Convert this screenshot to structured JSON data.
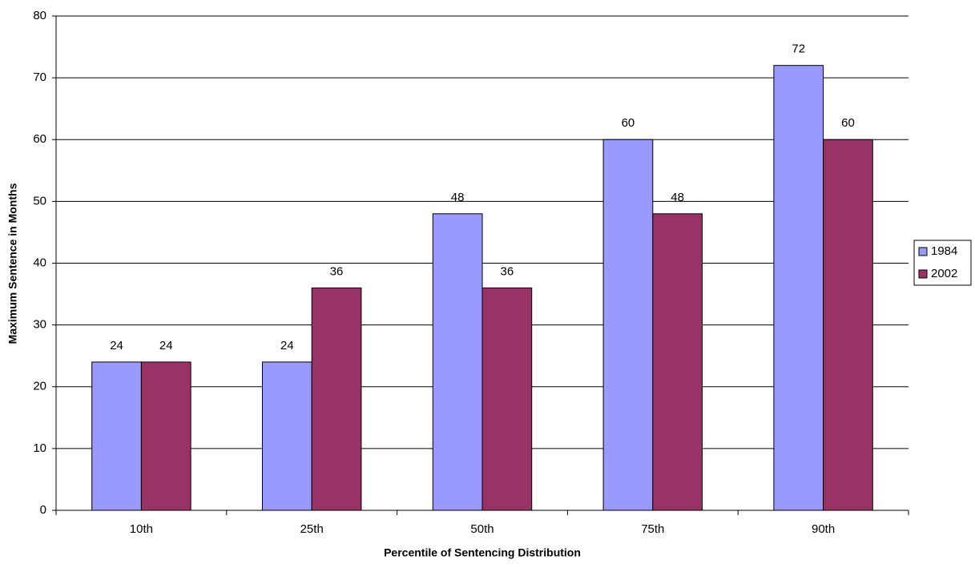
{
  "chart_data": {
    "type": "bar",
    "x_label": "Percentile of Sentencing Distribution",
    "y_label": "Maximum Sentence in Months",
    "categories": [
      "10th",
      "25th",
      "50th",
      "75th",
      "90th"
    ],
    "series": [
      {
        "name": "1984",
        "color": "#9999ff",
        "values": [
          24,
          24,
          48,
          60,
          72
        ]
      },
      {
        "name": "2002",
        "color": "#993366",
        "values": [
          24,
          36,
          36,
          48,
          60
        ]
      }
    ],
    "ylim": [
      0,
      80
    ],
    "yticks": [
      0,
      10,
      20,
      30,
      40,
      50,
      60,
      70,
      80
    ],
    "grid": true,
    "legend": "right"
  }
}
